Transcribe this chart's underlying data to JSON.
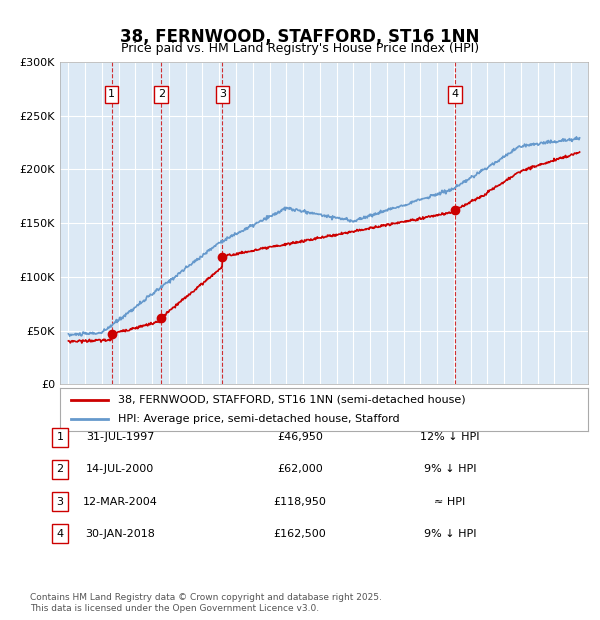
{
  "title": "38, FERNWOOD, STAFFORD, ST16 1NN",
  "subtitle": "Price paid vs. HM Land Registry's House Price Index (HPI)",
  "background_color": "#dce9f5",
  "plot_bg_color": "#dce9f5",
  "ylim": [
    0,
    300000
  ],
  "yticks": [
    0,
    50000,
    100000,
    150000,
    200000,
    250000,
    300000
  ],
  "ytick_labels": [
    "£0",
    "£50K",
    "£100K",
    "£150K",
    "£200K",
    "£250K",
    "£300K"
  ],
  "sale_dates": [
    1997.58,
    2000.54,
    2004.19,
    2018.08
  ],
  "sale_prices": [
    46950,
    62000,
    118950,
    162500
  ],
  "sale_labels": [
    "1",
    "2",
    "3",
    "4"
  ],
  "legend_red_label": "38, FERNWOOD, STAFFORD, ST16 1NN (semi-detached house)",
  "legend_blue_label": "HPI: Average price, semi-detached house, Stafford",
  "table_rows": [
    {
      "num": "1",
      "date": "31-JUL-1997",
      "price": "£46,950",
      "hpi": "12% ↓ HPI"
    },
    {
      "num": "2",
      "date": "14-JUL-2000",
      "price": "£62,000",
      "hpi": "9% ↓ HPI"
    },
    {
      "num": "3",
      "date": "12-MAR-2004",
      "price": "£118,950",
      "hpi": "≈ HPI"
    },
    {
      "num": "4",
      "date": "30-JAN-2018",
      "price": "£162,500",
      "hpi": "9% ↓ HPI"
    }
  ],
  "footnote": "Contains HM Land Registry data © Crown copyright and database right 2025.\nThis data is licensed under the Open Government Licence v3.0.",
  "red_color": "#cc0000",
  "blue_color": "#6699cc",
  "dashed_color": "#cc0000"
}
